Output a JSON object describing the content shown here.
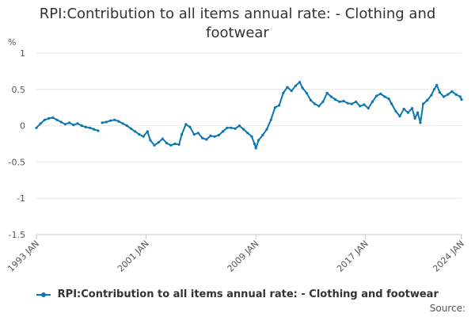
{
  "chart_data": {
    "type": "line",
    "title": "RPI:Contribution to all items annual rate: - Clothing and footwear",
    "ylabel_unit": "%",
    "xlabel": "",
    "ylim": [
      -1.5,
      1
    ],
    "yticks": [
      1,
      0.5,
      0,
      -0.5,
      -1,
      -1.5
    ],
    "xrange": [
      1993.0,
      2024.0
    ],
    "xticks": [
      {
        "value": 1993.0,
        "label": "1993 JAN"
      },
      {
        "value": 2001.0,
        "label": "2001 JAN"
      },
      {
        "value": 2009.0,
        "label": "2009 JAN"
      },
      {
        "value": 2017.0,
        "label": "2017 JAN"
      },
      {
        "value": 2024.0,
        "label": "2024 JAN"
      }
    ],
    "grid": true,
    "legend_position": "bottom",
    "color": "#0a77b3",
    "series": [
      {
        "name": "RPI:Contribution to all items annual rate: - Clothing and footwear",
        "points": [
          [
            1993.0,
            -0.03
          ],
          [
            1993.3,
            0.03
          ],
          [
            1993.6,
            0.08
          ],
          [
            1993.9,
            0.1
          ],
          [
            1994.2,
            0.11
          ],
          [
            1994.5,
            0.08
          ],
          [
            1994.8,
            0.05
          ],
          [
            1995.1,
            0.02
          ],
          [
            1995.4,
            0.04
          ],
          [
            1995.7,
            0.01
          ],
          [
            1996.0,
            0.03
          ],
          [
            1996.3,
            0.0
          ],
          [
            1996.6,
            -0.02
          ],
          [
            1996.9,
            -0.03
          ],
          [
            1997.2,
            -0.05
          ],
          [
            1997.5,
            -0.07
          ],
          null,
          [
            1997.8,
            0.04
          ],
          [
            1998.1,
            0.05
          ],
          [
            1998.4,
            0.07
          ],
          [
            1998.7,
            0.08
          ],
          [
            1999.0,
            0.06
          ],
          [
            1999.3,
            0.03
          ],
          [
            1999.6,
            0.0
          ],
          [
            1999.9,
            -0.04
          ],
          [
            2000.2,
            -0.08
          ],
          [
            2000.5,
            -0.12
          ],
          [
            2000.8,
            -0.15
          ],
          [
            2001.1,
            -0.08
          ],
          [
            2001.3,
            -0.2
          ],
          [
            2001.6,
            -0.27
          ],
          [
            2001.9,
            -0.23
          ],
          [
            2002.2,
            -0.18
          ],
          [
            2002.5,
            -0.24
          ],
          [
            2002.8,
            -0.27
          ],
          [
            2003.1,
            -0.25
          ],
          [
            2003.4,
            -0.26
          ],
          [
            2003.6,
            -0.12
          ],
          [
            2003.9,
            0.02
          ],
          [
            2004.2,
            -0.02
          ],
          [
            2004.5,
            -0.12
          ],
          [
            2004.8,
            -0.1
          ],
          [
            2005.1,
            -0.17
          ],
          [
            2005.4,
            -0.19
          ],
          [
            2005.7,
            -0.14
          ],
          [
            2006.0,
            -0.15
          ],
          [
            2006.3,
            -0.13
          ],
          [
            2006.6,
            -0.08
          ],
          [
            2006.9,
            -0.03
          ],
          [
            2007.2,
            -0.03
          ],
          [
            2007.5,
            -0.04
          ],
          [
            2007.8,
            0.0
          ],
          [
            2008.1,
            -0.05
          ],
          [
            2008.4,
            -0.1
          ],
          [
            2008.7,
            -0.15
          ],
          [
            2008.9,
            -0.25
          ],
          [
            2009.0,
            -0.31
          ],
          [
            2009.2,
            -0.2
          ],
          [
            2009.5,
            -0.13
          ],
          [
            2009.8,
            -0.05
          ],
          [
            2010.1,
            0.08
          ],
          [
            2010.4,
            0.25
          ],
          [
            2010.7,
            0.28
          ],
          [
            2011.0,
            0.45
          ],
          [
            2011.3,
            0.53
          ],
          [
            2011.6,
            0.48
          ],
          [
            2011.9,
            0.55
          ],
          [
            2012.2,
            0.6
          ],
          [
            2012.4,
            0.52
          ],
          [
            2012.7,
            0.45
          ],
          [
            2013.0,
            0.35
          ],
          [
            2013.3,
            0.3
          ],
          [
            2013.6,
            0.27
          ],
          [
            2013.9,
            0.33
          ],
          [
            2014.2,
            0.45
          ],
          [
            2014.5,
            0.4
          ],
          [
            2014.8,
            0.36
          ],
          [
            2015.1,
            0.33
          ],
          [
            2015.4,
            0.34
          ],
          [
            2015.7,
            0.31
          ],
          [
            2016.0,
            0.3
          ],
          [
            2016.3,
            0.33
          ],
          [
            2016.6,
            0.27
          ],
          [
            2016.9,
            0.29
          ],
          [
            2017.2,
            0.24
          ],
          [
            2017.5,
            0.33
          ],
          [
            2017.8,
            0.41
          ],
          [
            2018.1,
            0.44
          ],
          [
            2018.4,
            0.4
          ],
          [
            2018.7,
            0.37
          ],
          [
            2018.9,
            0.3
          ],
          [
            2019.2,
            0.2
          ],
          [
            2019.5,
            0.13
          ],
          [
            2019.8,
            0.23
          ],
          [
            2020.1,
            0.18
          ],
          [
            2020.4,
            0.24
          ],
          [
            2020.6,
            0.1
          ],
          [
            2020.8,
            0.18
          ],
          [
            2021.0,
            0.04
          ],
          [
            2021.2,
            0.3
          ],
          [
            2021.5,
            0.35
          ],
          [
            2021.8,
            0.42
          ],
          [
            2022.0,
            0.5
          ],
          [
            2022.2,
            0.56
          ],
          [
            2022.4,
            0.46
          ],
          [
            2022.7,
            0.4
          ],
          [
            2023.0,
            0.43
          ],
          [
            2023.3,
            0.47
          ],
          [
            2023.6,
            0.43
          ],
          [
            2023.9,
            0.4
          ],
          [
            2024.0,
            0.36
          ]
        ]
      }
    ]
  },
  "legend": {
    "label": "RPI:Contribution to all items annual rate: - Clothing and footwear"
  },
  "footer": {
    "source_label": "Source:"
  }
}
